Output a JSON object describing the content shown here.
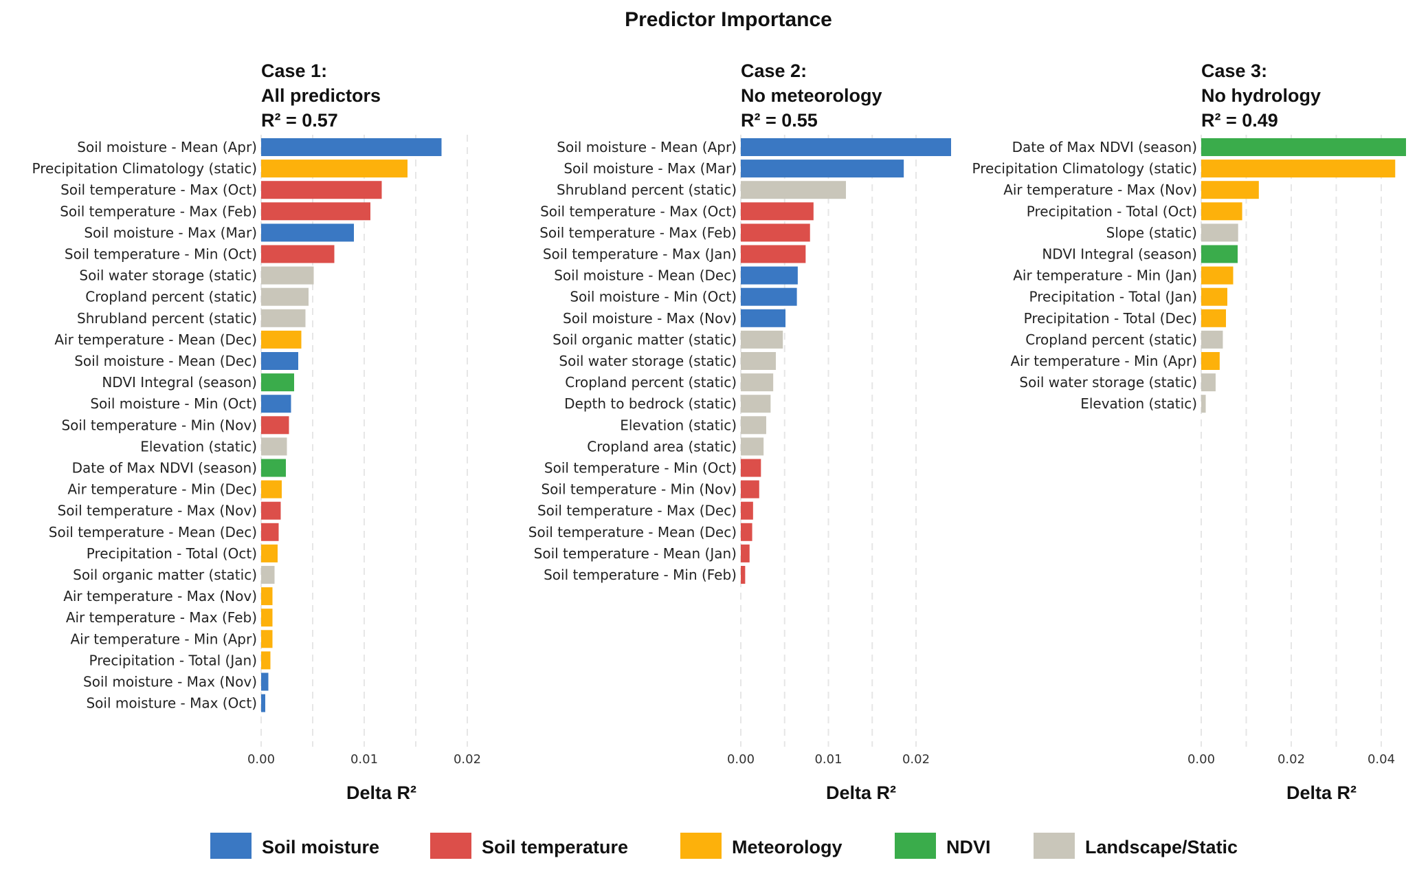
{
  "figure_title": "Predictor Importance",
  "colors": {
    "Soil moisture": "#3A78C3",
    "Soil temperature": "#DC4F4A",
    "Meteorology": "#FDB10B",
    "NDVI": "#3AAC4B",
    "Landscape/Static": "#C9C6BA"
  },
  "legend": [
    {
      "label": "Soil moisture",
      "color": "#3A78C3"
    },
    {
      "label": "Soil temperature",
      "color": "#DC4F4A"
    },
    {
      "label": "Meteorology",
      "color": "#FDB10B"
    },
    {
      "label": "NDVI",
      "color": "#3AAC4B"
    },
    {
      "label": "Landscape/Static",
      "color": "#C9C6BA"
    }
  ],
  "chart_data": [
    {
      "type": "bar",
      "orientation": "horizontal",
      "title_lines": [
        "Case 1:",
        "All predictors",
        "R² = 0.57"
      ],
      "xlabel": "Delta R²",
      "xlim": [
        0,
        0.02
      ],
      "xticks": [
        0.0,
        0.01,
        0.02
      ],
      "xtick_labels": [
        "0.00",
        "0.01",
        "0.02"
      ],
      "grid": "vertical dashed",
      "bars": [
        {
          "label": "Soil moisture - Mean (Apr)",
          "value": 0.0175,
          "group": "Soil moisture"
        },
        {
          "label": "Precipitation Climatology (static)",
          "value": 0.0142,
          "group": "Meteorology"
        },
        {
          "label": "Soil temperature - Max (Oct)",
          "value": 0.0117,
          "group": "Soil temperature"
        },
        {
          "label": "Soil temperature - Max (Feb)",
          "value": 0.0106,
          "group": "Soil temperature"
        },
        {
          "label": "Soil moisture - Max (Mar)",
          "value": 0.009,
          "group": "Soil moisture"
        },
        {
          "label": "Soil temperature - Min (Oct)",
          "value": 0.0071,
          "group": "Soil temperature"
        },
        {
          "label": "Soil water storage (static)",
          "value": 0.0051,
          "group": "Landscape/Static"
        },
        {
          "label": "Cropland percent (static)",
          "value": 0.0046,
          "group": "Landscape/Static"
        },
        {
          "label": "Shrubland percent (static)",
          "value": 0.0043,
          "group": "Landscape/Static"
        },
        {
          "label": "Air temperature - Mean (Dec)",
          "value": 0.0039,
          "group": "Meteorology"
        },
        {
          "label": "Soil moisture - Mean (Dec)",
          "value": 0.0036,
          "group": "Soil moisture"
        },
        {
          "label": "NDVI Integral (season)",
          "value": 0.0032,
          "group": "NDVI"
        },
        {
          "label": "Soil moisture - Min (Oct)",
          "value": 0.0029,
          "group": "Soil moisture"
        },
        {
          "label": "Soil temperature - Min (Nov)",
          "value": 0.0027,
          "group": "Soil temperature"
        },
        {
          "label": "Elevation (static)",
          "value": 0.0025,
          "group": "Landscape/Static"
        },
        {
          "label": "Date of Max NDVI (season)",
          "value": 0.0024,
          "group": "NDVI"
        },
        {
          "label": "Air temperature - Min (Dec)",
          "value": 0.002,
          "group": "Meteorology"
        },
        {
          "label": "Soil temperature - Max (Nov)",
          "value": 0.0019,
          "group": "Soil temperature"
        },
        {
          "label": "Soil temperature - Mean (Dec)",
          "value": 0.0017,
          "group": "Soil temperature"
        },
        {
          "label": "Precipitation - Total (Oct)",
          "value": 0.0016,
          "group": "Meteorology"
        },
        {
          "label": "Soil organic matter (static)",
          "value": 0.0013,
          "group": "Landscape/Static"
        },
        {
          "label": "Air temperature - Max (Nov)",
          "value": 0.0011,
          "group": "Meteorology"
        },
        {
          "label": "Air temperature - Max (Feb)",
          "value": 0.0011,
          "group": "Meteorology"
        },
        {
          "label": "Air temperature - Min (Apr)",
          "value": 0.0011,
          "group": "Meteorology"
        },
        {
          "label": "Precipitation - Total (Jan)",
          "value": 0.0009,
          "group": "Meteorology"
        },
        {
          "label": "Soil moisture - Max (Nov)",
          "value": 0.0007,
          "group": "Soil moisture"
        },
        {
          "label": "Soil moisture - Max (Oct)",
          "value": 0.0004,
          "group": "Soil moisture"
        }
      ]
    },
    {
      "type": "bar",
      "orientation": "horizontal",
      "title_lines": [
        "Case 2:",
        "No meteorology",
        "R² = 0.55"
      ],
      "xlabel": "Delta R²",
      "xlim": [
        0,
        0.024
      ],
      "xticks": [
        0.0,
        0.01,
        0.02
      ],
      "xtick_labels": [
        "0.00",
        "0.01",
        "0.02"
      ],
      "grid": "vertical dashed",
      "bars": [
        {
          "label": "Soil moisture - Mean (Apr)",
          "value": 0.024,
          "group": "Soil moisture"
        },
        {
          "label": "Soil moisture - Max (Mar)",
          "value": 0.0186,
          "group": "Soil moisture"
        },
        {
          "label": "Shrubland percent (static)",
          "value": 0.012,
          "group": "Landscape/Static"
        },
        {
          "label": "Soil temperature - Max (Oct)",
          "value": 0.0083,
          "group": "Soil temperature"
        },
        {
          "label": "Soil temperature - Max (Feb)",
          "value": 0.0079,
          "group": "Soil temperature"
        },
        {
          "label": "Soil temperature - Max (Jan)",
          "value": 0.0074,
          "group": "Soil temperature"
        },
        {
          "label": "Soil moisture - Mean (Dec)",
          "value": 0.0065,
          "group": "Soil moisture"
        },
        {
          "label": "Soil moisture - Min (Oct)",
          "value": 0.0064,
          "group": "Soil moisture"
        },
        {
          "label": "Soil moisture - Max (Nov)",
          "value": 0.0051,
          "group": "Soil moisture"
        },
        {
          "label": "Soil organic matter (static)",
          "value": 0.0048,
          "group": "Landscape/Static"
        },
        {
          "label": "Soil water storage (static)",
          "value": 0.004,
          "group": "Landscape/Static"
        },
        {
          "label": "Cropland percent (static)",
          "value": 0.0037,
          "group": "Landscape/Static"
        },
        {
          "label": "Depth to bedrock (static)",
          "value": 0.0034,
          "group": "Landscape/Static"
        },
        {
          "label": "Elevation (static)",
          "value": 0.0029,
          "group": "Landscape/Static"
        },
        {
          "label": "Cropland area (static)",
          "value": 0.0026,
          "group": "Landscape/Static"
        },
        {
          "label": "Soil temperature - Min (Oct)",
          "value": 0.0023,
          "group": "Soil temperature"
        },
        {
          "label": "Soil temperature - Min (Nov)",
          "value": 0.0021,
          "group": "Soil temperature"
        },
        {
          "label": "Soil temperature - Max (Dec)",
          "value": 0.0014,
          "group": "Soil temperature"
        },
        {
          "label": "Soil temperature - Mean (Dec)",
          "value": 0.0013,
          "group": "Soil temperature"
        },
        {
          "label": "Soil temperature - Mean (Jan)",
          "value": 0.001,
          "group": "Soil temperature"
        },
        {
          "label": "Soil temperature - Min (Feb)",
          "value": 0.0005,
          "group": "Soil temperature"
        }
      ]
    },
    {
      "type": "bar",
      "orientation": "horizontal",
      "title_lines": [
        "Case 3:",
        "No hydrology",
        "R² = 0.49"
      ],
      "xlabel": "Delta R²",
      "xlim": [
        0,
        0.0455
      ],
      "xticks": [
        0.0,
        0.02,
        0.04
      ],
      "xtick_labels": [
        "0.00",
        "0.02",
        "0.04"
      ],
      "grid": "vertical dashed",
      "bars": [
        {
          "label": "Date of Max NDVI (season)",
          "value": 0.0455,
          "group": "NDVI"
        },
        {
          "label": "Precipitation Climatology (static)",
          "value": 0.0431,
          "group": "Meteorology"
        },
        {
          "label": "Air temperature - Max (Nov)",
          "value": 0.0128,
          "group": "Meteorology"
        },
        {
          "label": "Precipitation - Total (Oct)",
          "value": 0.0091,
          "group": "Meteorology"
        },
        {
          "label": "Slope (static)",
          "value": 0.0082,
          "group": "Landscape/Static"
        },
        {
          "label": "NDVI Integral (season)",
          "value": 0.0081,
          "group": "NDVI"
        },
        {
          "label": "Air temperature - Min (Jan)",
          "value": 0.0071,
          "group": "Meteorology"
        },
        {
          "label": "Precipitation - Total (Jan)",
          "value": 0.0058,
          "group": "Meteorology"
        },
        {
          "label": "Precipitation - Total (Dec)",
          "value": 0.0055,
          "group": "Meteorology"
        },
        {
          "label": "Cropland percent (static)",
          "value": 0.0048,
          "group": "Landscape/Static"
        },
        {
          "label": "Air temperature - Min (Apr)",
          "value": 0.0041,
          "group": "Meteorology"
        },
        {
          "label": "Soil water storage (static)",
          "value": 0.0032,
          "group": "Landscape/Static"
        },
        {
          "label": "Elevation (static)",
          "value": 0.001,
          "group": "Landscape/Static"
        }
      ]
    }
  ]
}
